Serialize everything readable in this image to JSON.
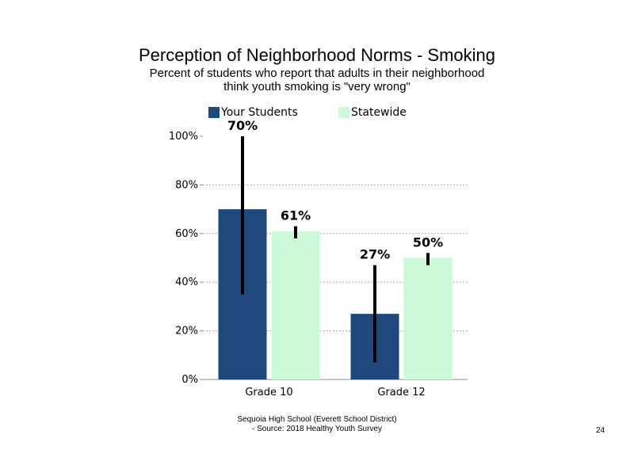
{
  "chart_data": {
    "type": "bar",
    "title": "Perception of Neighborhood Norms - Smoking",
    "subtitle": [
      "Percent of students who report that adults in their neighborhood",
      "think youth smoking is \"very wrong\""
    ],
    "categories": [
      "Grade 10",
      "Grade 12"
    ],
    "series": [
      {
        "name": "Your Students",
        "color": "#1f497d",
        "values": [
          70,
          27
        ],
        "labels": [
          "70%",
          "27%"
        ],
        "error_low": [
          35,
          7
        ],
        "error_high": [
          100,
          47
        ]
      },
      {
        "name": "Statewide",
        "color": "#ccfad9",
        "values": [
          61,
          50
        ],
        "labels": [
          "61%",
          "50%"
        ],
        "error_low": [
          58,
          47
        ],
        "error_high": [
          63,
          52
        ]
      }
    ],
    "ylim": [
      0,
      100
    ],
    "yticks": [
      "0%",
      "20%",
      "40%",
      "60%",
      "80%",
      "100%"
    ],
    "ytick_values": [
      0,
      20,
      40,
      60,
      80,
      100
    ],
    "grid": true,
    "legend_position": "top"
  },
  "footer": {
    "line1": "Sequoia High School (Everett School District)",
    "line2": "- Source: 2018 Healthy Youth Survey"
  },
  "page_number": "24"
}
